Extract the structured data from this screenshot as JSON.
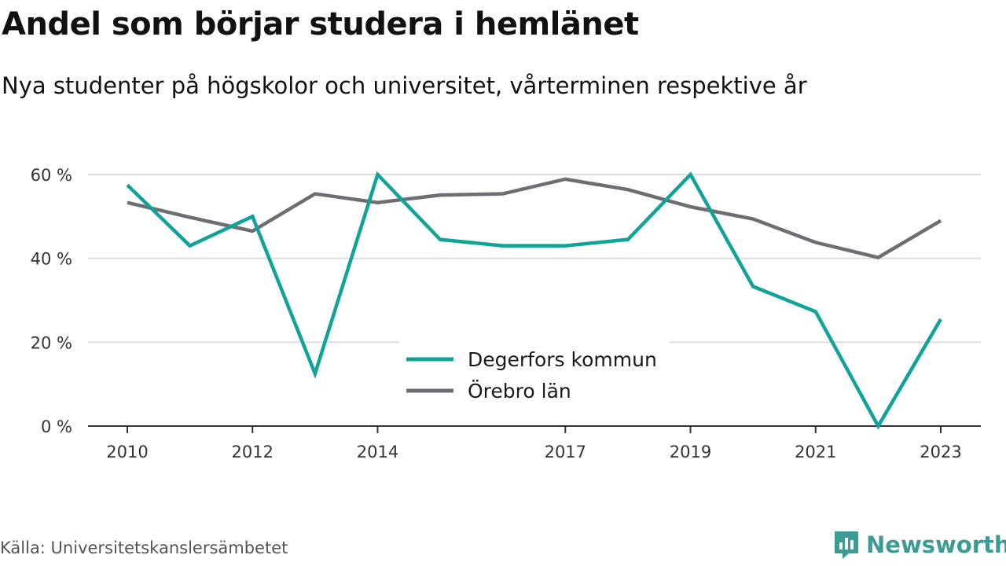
{
  "title": "Andel som börjar studera i hemlänet",
  "subtitle": "Nya studenter på högskolor och universitet, vårterminen respektive år",
  "source": "Källa: Universitetskanslersämbetet",
  "brand": {
    "name": "Newsworthy",
    "icon": "newsworthy-logo-icon",
    "color": "#3a9c94"
  },
  "chart_data": {
    "type": "line",
    "x": [
      2010,
      2011,
      2012,
      2013,
      2014,
      2015,
      2016,
      2017,
      2018,
      2019,
      2020,
      2021,
      2022,
      2023
    ],
    "x_tick_labels": [
      "2010",
      "2012",
      "2014",
      "2017",
      "2019",
      "2021",
      "2023"
    ],
    "x_tick_values": [
      2010,
      2012,
      2014,
      2017,
      2019,
      2021,
      2023
    ],
    "y_ticks": [
      0,
      20,
      40,
      60
    ],
    "y_tick_labels": [
      "0 %",
      "20 %",
      "40 %",
      "60 %"
    ],
    "ylim": [
      0,
      60
    ],
    "grid": true,
    "legend_position": "bottom-center",
    "series": [
      {
        "name": "Degerfors kommun",
        "color": "#0fa399",
        "values": [
          57.5,
          43,
          50,
          12.5,
          60,
          44.5,
          43,
          43,
          44.5,
          60,
          33.3,
          27.3,
          0,
          25.5
        ]
      },
      {
        "name": "Örebro län",
        "color": "#6e6d73",
        "values": [
          53.3,
          49.8,
          46.5,
          55.4,
          53.3,
          55.1,
          55.4,
          58.9,
          56.4,
          52.3,
          49.4,
          43.8,
          40.2,
          49
        ]
      }
    ]
  }
}
